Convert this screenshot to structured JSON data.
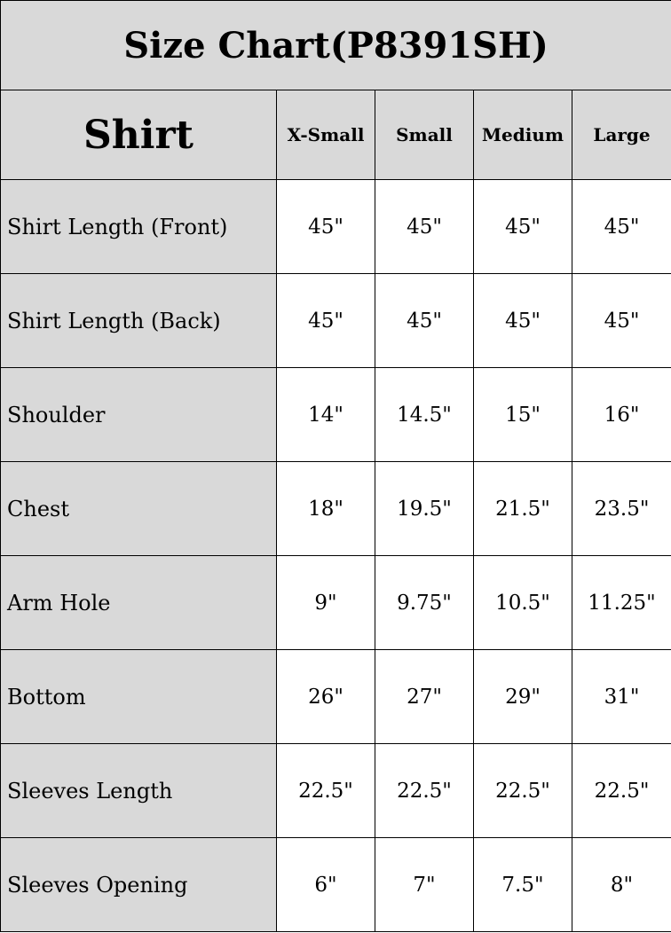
{
  "title": "Size Chart(P8391SH)",
  "header": {
    "section": "Shirt",
    "sizes": [
      "X-Small",
      "Small",
      "Medium",
      "Large"
    ]
  },
  "rows": [
    {
      "label": "Shirt Length (Front)",
      "values": [
        "45\"",
        "45\"",
        "45\"",
        "45\""
      ]
    },
    {
      "label": "Shirt Length (Back)",
      "values": [
        "45\"",
        "45\"",
        "45\"",
        "45\""
      ]
    },
    {
      "label": "Shoulder",
      "values": [
        "14\"",
        "14.5\"",
        "15\"",
        "16\""
      ]
    },
    {
      "label": "Chest",
      "values": [
        "18\"",
        "19.5\"",
        "21.5\"",
        "23.5\""
      ]
    },
    {
      "label": "Arm Hole",
      "values": [
        "9\"",
        "9.75\"",
        "10.5\"",
        "11.25\""
      ]
    },
    {
      "label": "Bottom",
      "values": [
        "26\"",
        "27\"",
        "29\"",
        "31\""
      ]
    },
    {
      "label": "Sleeves Length",
      "values": [
        "22.5\"",
        "22.5\"",
        "22.5\"",
        "22.5\""
      ]
    },
    {
      "label": "Sleeves Opening",
      "values": [
        "6\"",
        "7\"",
        "7.5\"",
        "8\""
      ]
    }
  ],
  "colors": {
    "header_bg": "#d9d9d9",
    "cell_bg": "#ffffff",
    "border": "#000000"
  }
}
